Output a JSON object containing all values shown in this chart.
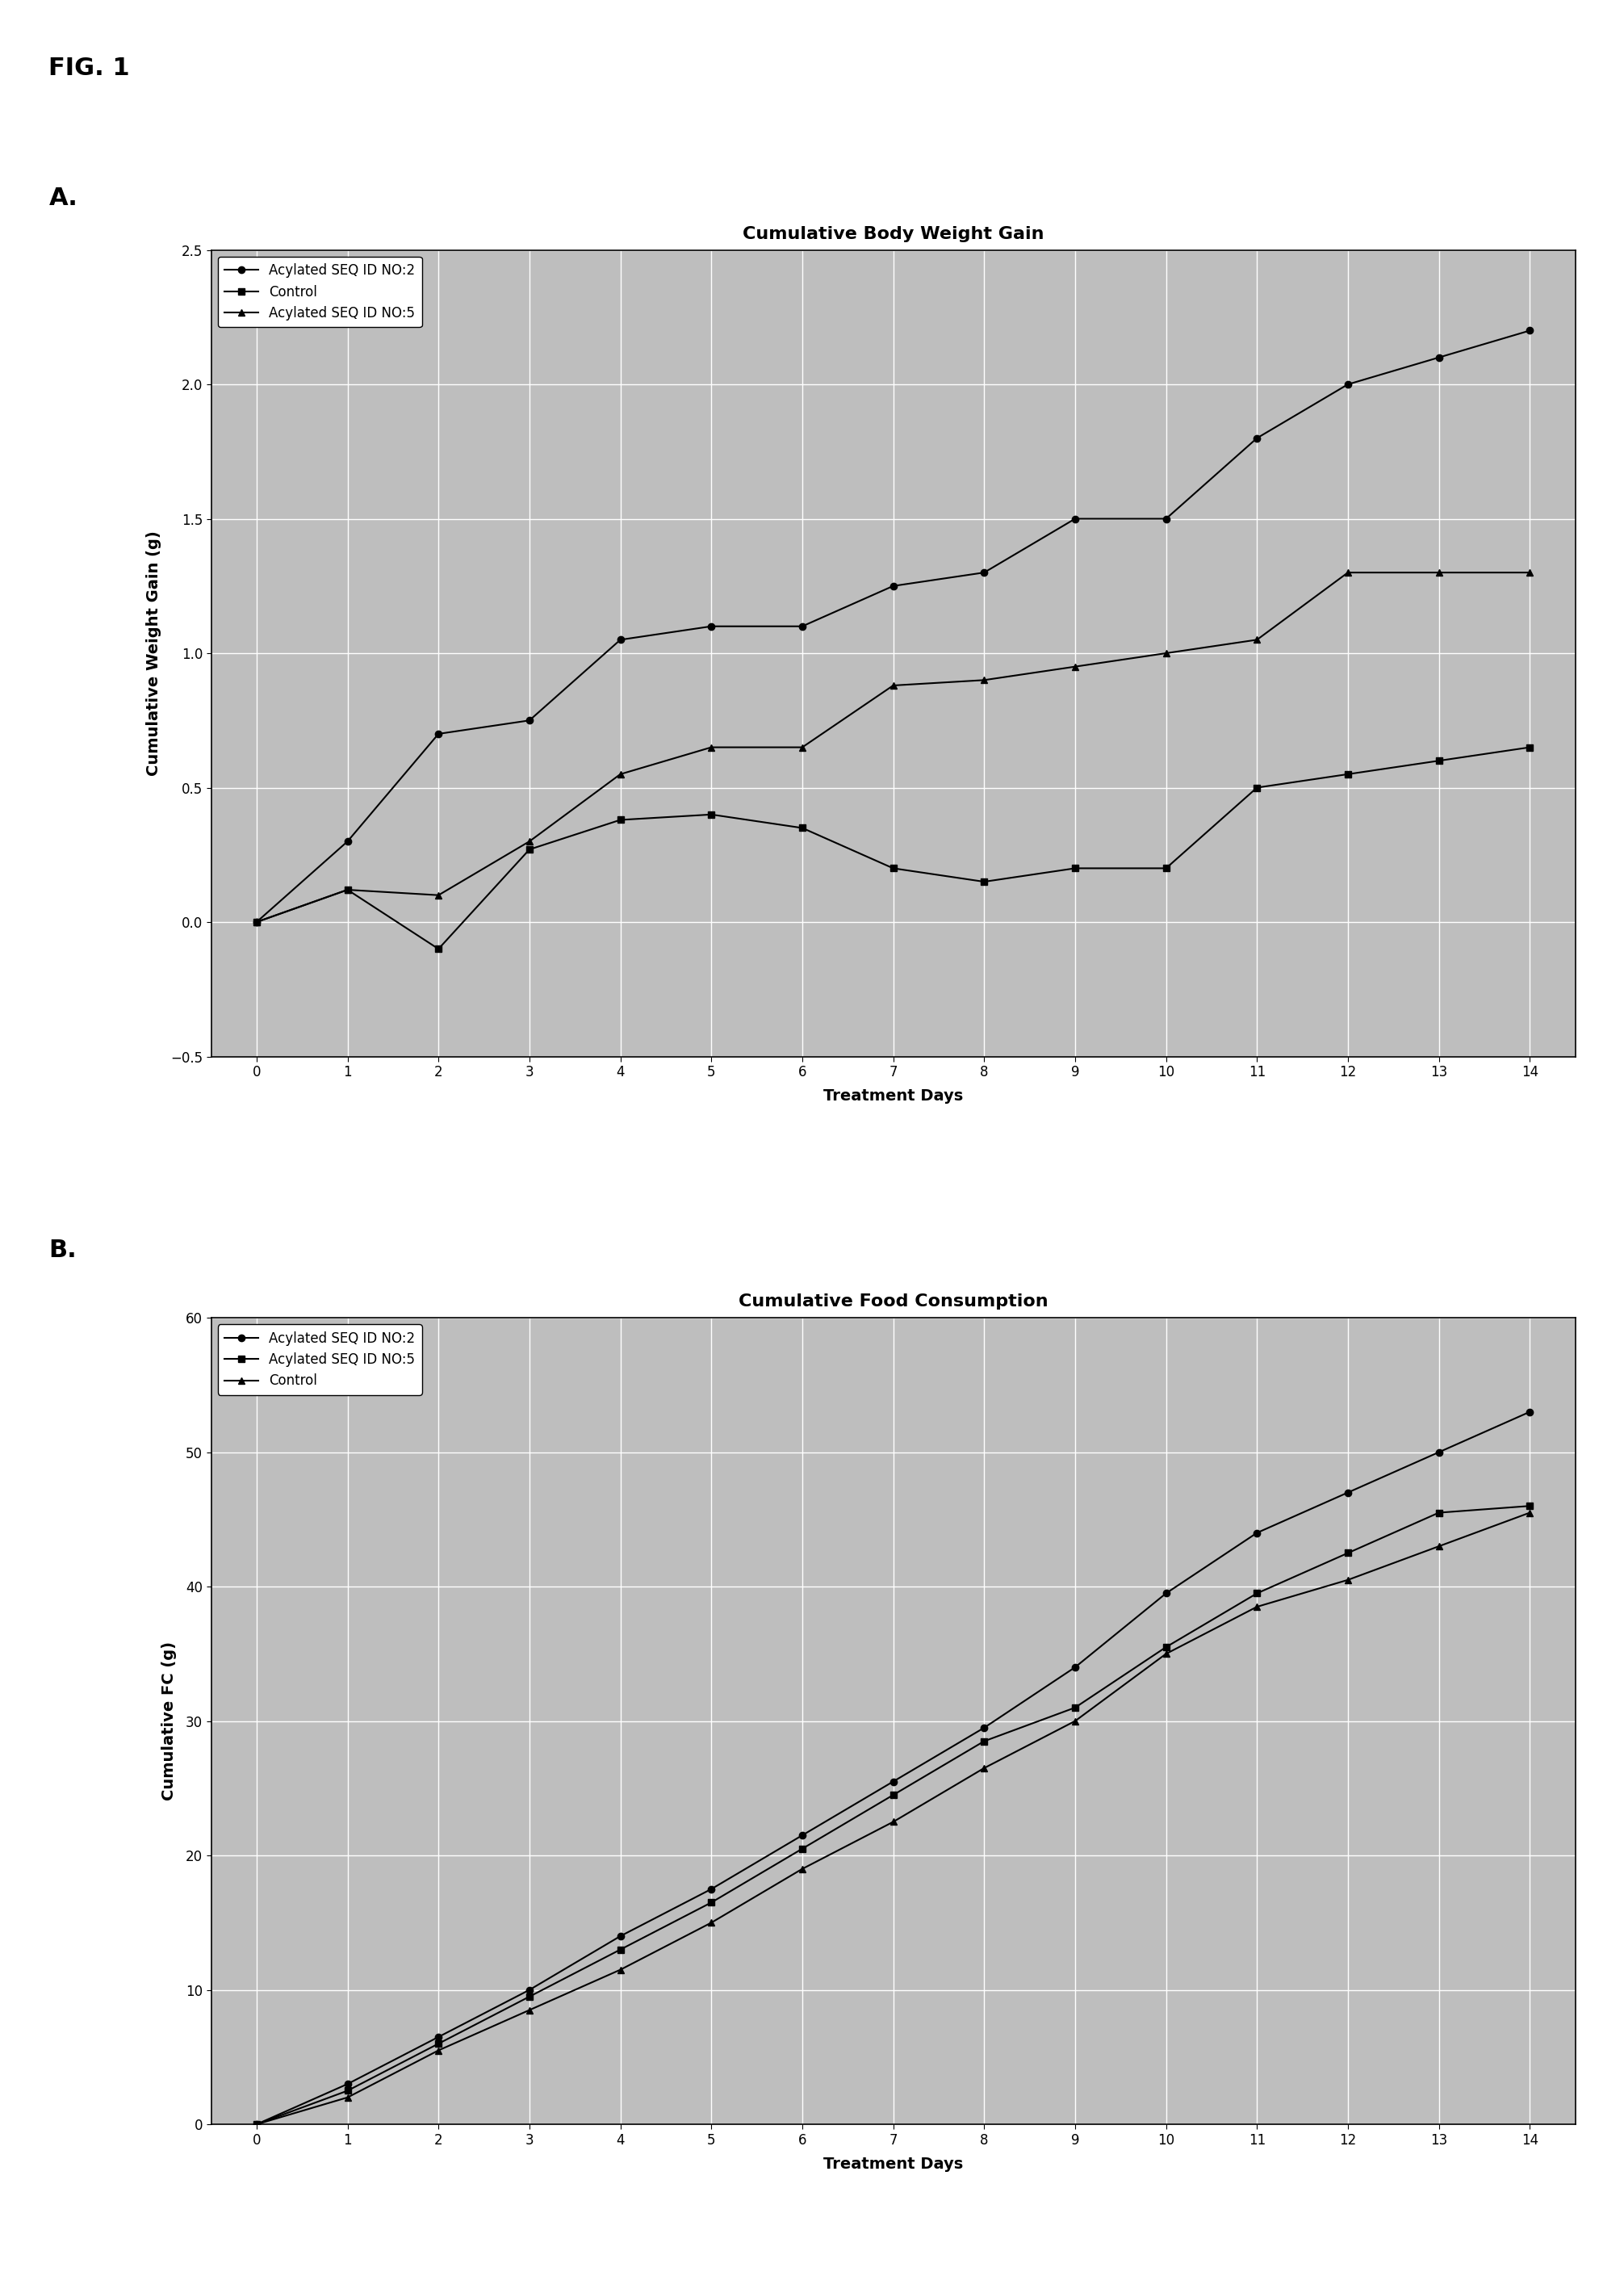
{
  "fig_label": "FIG. 1",
  "panel_a_label": "A.",
  "panel_b_label": "B.",
  "panel_a": {
    "title": "Cumulative Body Weight Gain",
    "xlabel": "Treatment Days",
    "ylabel": "Cumulative Weight Gain (g)",
    "ylim": [
      -0.5,
      2.5
    ],
    "xlim": [
      -0.5,
      14.5
    ],
    "yticks": [
      -0.5,
      0,
      0.5,
      1.0,
      1.5,
      2.0,
      2.5
    ],
    "xticks": [
      0,
      1,
      2,
      3,
      4,
      5,
      6,
      7,
      8,
      9,
      10,
      11,
      12,
      13,
      14
    ],
    "series": {
      "Acylated SEQ ID NO:2": {
        "x": [
          0,
          1,
          2,
          3,
          4,
          5,
          6,
          7,
          8,
          9,
          10,
          11,
          12,
          13,
          14
        ],
        "y": [
          0.0,
          0.3,
          0.7,
          0.75,
          1.05,
          1.1,
          1.1,
          1.25,
          1.3,
          1.5,
          1.5,
          1.8,
          2.0,
          2.1,
          2.2
        ],
        "marker": "o",
        "linestyle": "-",
        "color": "#000000"
      },
      "Control": {
        "x": [
          0,
          1,
          2,
          3,
          4,
          5,
          6,
          7,
          8,
          9,
          10,
          11,
          12,
          13,
          14
        ],
        "y": [
          0.0,
          0.12,
          -0.1,
          0.27,
          0.38,
          0.4,
          0.35,
          0.2,
          0.15,
          0.2,
          0.2,
          0.5,
          0.55,
          0.6,
          0.65
        ],
        "marker": "s",
        "linestyle": "-",
        "color": "#000000"
      },
      "Acylated SEQ ID NO:5": {
        "x": [
          0,
          1,
          2,
          3,
          4,
          5,
          6,
          7,
          8,
          9,
          10,
          11,
          12,
          13,
          14
        ],
        "y": [
          0.0,
          0.12,
          0.1,
          0.3,
          0.55,
          0.65,
          0.65,
          0.88,
          0.9,
          0.95,
          1.0,
          1.05,
          1.3,
          1.3,
          1.3
        ],
        "marker": "^",
        "linestyle": "-",
        "color": "#000000"
      }
    },
    "legend_order": [
      "Acylated SEQ ID NO:2",
      "Control",
      "Acylated SEQ ID NO:5"
    ]
  },
  "panel_b": {
    "title": "Cumulative Food Consumption",
    "xlabel": "Treatment Days",
    "ylabel": "Cumulative FC (g)",
    "ylim": [
      0,
      60
    ],
    "xlim": [
      -0.5,
      14.5
    ],
    "yticks": [
      0,
      10,
      20,
      30,
      40,
      50,
      60
    ],
    "xticks": [
      0,
      1,
      2,
      3,
      4,
      5,
      6,
      7,
      8,
      9,
      10,
      11,
      12,
      13,
      14
    ],
    "series": {
      "Acylated SEQ ID NO:2": {
        "x": [
          0,
          1,
          2,
          3,
          4,
          5,
          6,
          7,
          8,
          9,
          10,
          11,
          12,
          13,
          14
        ],
        "y": [
          0.0,
          3.0,
          6.5,
          10.0,
          14.0,
          17.5,
          21.5,
          25.5,
          29.5,
          34.0,
          39.5,
          44.0,
          47.0,
          50.0,
          53.0
        ],
        "marker": "o",
        "linestyle": "-",
        "color": "#000000"
      },
      "Acylated SEQ ID NO:5": {
        "x": [
          0,
          1,
          2,
          3,
          4,
          5,
          6,
          7,
          8,
          9,
          10,
          11,
          12,
          13,
          14
        ],
        "y": [
          0.0,
          2.5,
          6.0,
          9.5,
          13.0,
          16.5,
          20.5,
          24.5,
          28.5,
          31.0,
          35.5,
          39.5,
          42.5,
          45.5,
          46.0
        ],
        "marker": "s",
        "linestyle": "-",
        "color": "#000000"
      },
      "Control": {
        "x": [
          0,
          1,
          2,
          3,
          4,
          5,
          6,
          7,
          8,
          9,
          10,
          11,
          12,
          13,
          14
        ],
        "y": [
          0.0,
          2.0,
          5.5,
          8.5,
          11.5,
          15.0,
          19.0,
          22.5,
          26.5,
          30.0,
          35.0,
          38.5,
          40.5,
          43.0,
          45.5
        ],
        "marker": "^",
        "linestyle": "-",
        "color": "#000000"
      }
    },
    "legend_order": [
      "Acylated SEQ ID NO:2",
      "Acylated SEQ ID NO:5",
      "Control"
    ]
  },
  "background_color": "#bebebe",
  "fig_background": "#ffffff",
  "markersize": 6,
  "linewidth": 1.5,
  "grid_color": "#ffffff",
  "grid_linewidth": 1.0,
  "title_fontsize": 16,
  "label_fontsize": 14,
  "tick_fontsize": 12,
  "legend_fontsize": 12,
  "fig_label_fontsize": 22,
  "panel_label_fontsize": 22
}
